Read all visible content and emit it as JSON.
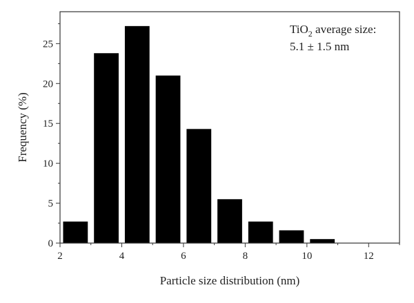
{
  "chart_data": {
    "type": "bar",
    "x": [
      2.5,
      3.5,
      4.5,
      5.5,
      6.5,
      7.5,
      8.5,
      9.5,
      10.5
    ],
    "values": [
      2.7,
      23.8,
      27.2,
      21.0,
      14.3,
      5.5,
      2.7,
      1.6,
      0.5
    ],
    "bar_width": 0.8,
    "xlabel": "Particle size distribution (nm)",
    "ylabel": "Frequency (%)",
    "xlim": [
      2,
      13
    ],
    "ylim": [
      0,
      29
    ],
    "xticks": [
      2,
      4,
      6,
      8,
      10,
      12
    ],
    "yticks": [
      0,
      5,
      10,
      15,
      20,
      25
    ],
    "grid": false,
    "annotation": {
      "line1_prefix": "TiO",
      "line1_sub": "2",
      "line1_suffix": " average size:",
      "line2": "5.1 ± 1.5 nm"
    },
    "colors": {
      "bar": "#000000",
      "axis": "#333333"
    }
  }
}
